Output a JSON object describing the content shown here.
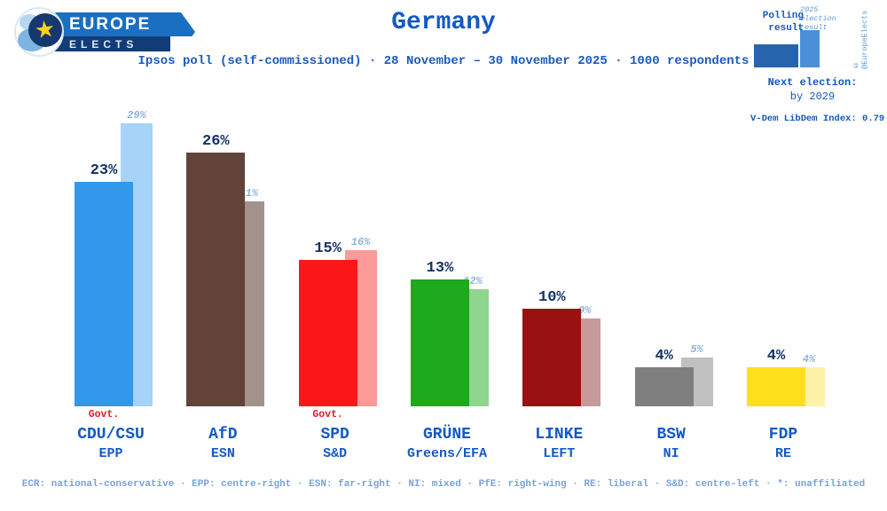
{
  "brand": {
    "line1": "EUROPE",
    "line2": "ELECTS",
    "star_icon": "★"
  },
  "header": {
    "title": "Germany",
    "subtitle": "Ipsos poll (self-commissioned) · 28 November – 30 November 2025 · 1000 respondents"
  },
  "info_panel": {
    "polling_label": "Polling result",
    "election_label": "2025 election result",
    "copyright": "© @EuropeElects",
    "next_election_label": "Next election:",
    "next_election_value": "by 2029",
    "vdem_label": "V-Dem LibDem Index: 0.79",
    "polling_color": "#2565ae",
    "election_color": "#4a90d9"
  },
  "chart_data": {
    "type": "bar",
    "title": "Germany — Ipsos poll, 28–30 November 2025",
    "categories": [
      "CDU/CSU",
      "AfD",
      "SPD",
      "GRÜNE",
      "LINKE",
      "BSW",
      "FDP"
    ],
    "series": [
      {
        "name": "Polling result",
        "values": [
          23,
          26,
          15,
          13,
          10,
          4,
          4
        ]
      },
      {
        "name": "2025 election result",
        "values": [
          29,
          21,
          16,
          12,
          9,
          5,
          4
        ]
      }
    ],
    "ylim": [
      0,
      30
    ],
    "grid": false,
    "legend_position": "top-right",
    "govt_label": "Govt.",
    "parties": [
      {
        "name": "CDU/CSU",
        "faction": "EPP",
        "poll": 23,
        "poll_label": "23%",
        "election": 29,
        "election_label": "29%",
        "color": "#3398ea",
        "light_color": "#a6d3f8",
        "govt": true
      },
      {
        "name": "AfD",
        "faction": "ESN",
        "poll": 26,
        "poll_label": "26%",
        "election": 21,
        "election_label": "21%",
        "color": "#614339",
        "light_color": "#a3928b",
        "govt": false
      },
      {
        "name": "SPD",
        "faction": "S&D",
        "poll": 15,
        "poll_label": "15%",
        "election": 16,
        "election_label": "16%",
        "color": "#fb1717",
        "light_color": "#fc9a9a",
        "govt": true
      },
      {
        "name": "GRÜNE",
        "faction": "Greens/EFA",
        "poll": 13,
        "poll_label": "13%",
        "election": 12,
        "election_label": "12%",
        "color": "#1daa1d",
        "light_color": "#8ed58e",
        "govt": false
      },
      {
        "name": "LINKE",
        "faction": "LEFT",
        "poll": 10,
        "poll_label": "10%",
        "election": 9,
        "election_label": "9%",
        "color": "#991111",
        "light_color": "#c79a9a",
        "govt": false
      },
      {
        "name": "BSW",
        "faction": "NI",
        "poll": 4,
        "poll_label": "4%",
        "election": 5,
        "election_label": "5%",
        "color": "#7f7f7f",
        "light_color": "#c0c0c0",
        "govt": false
      },
      {
        "name": "FDP",
        "faction": "RE",
        "poll": 4,
        "poll_label": "4%",
        "election": 4,
        "election_label": "4%",
        "color": "#ffdf1b",
        "light_color": "#fdf0a8",
        "govt": false
      }
    ]
  },
  "footer": {
    "legend_text": "ECR: national-conservative · EPP: centre-right · ESN: far-right · NI: mixed · PfE: right-wing · RE: liberal · S&D: centre-left · *: unaffiliated"
  }
}
